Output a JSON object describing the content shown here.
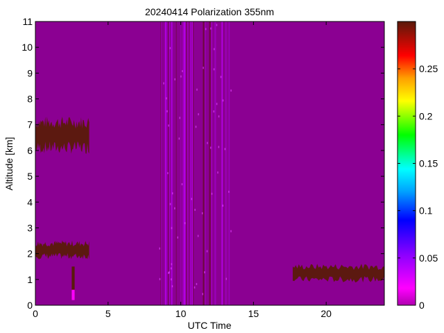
{
  "chart_data": {
    "type": "heatmap",
    "title": "20240414 Polarization 355nm",
    "xlabel": "UTC Time",
    "ylabel": "Altitude [km]",
    "xlim": [
      0,
      24
    ],
    "ylim": [
      0,
      11
    ],
    "x_ticks": [
      "0",
      "5",
      "10",
      "15",
      "20"
    ],
    "y_ticks": [
      "0",
      "1",
      "2",
      "3",
      "4",
      "5",
      "6",
      "7",
      "8",
      "9",
      "10",
      "11"
    ],
    "colorbar": {
      "range": [
        0,
        0.3
      ],
      "ticks": [
        "0",
        "0.05",
        "0.1",
        "0.15",
        "0.2",
        "0.25"
      ],
      "colormap": "purple-magenta-blue-cyan-green-yellow-orange-red-brown"
    },
    "background_value": 0.005,
    "background_color": "#8B0092",
    "features": [
      {
        "name": "mid-level layer",
        "x": [
          0,
          3.7
        ],
        "altitude": [
          5.9,
          7.3
        ],
        "value": 0.3
      },
      {
        "name": "low layer",
        "x": [
          0,
          3.7
        ],
        "altitude": [
          1.8,
          2.5
        ],
        "value": 0.3
      },
      {
        "name": "low-level dust layer",
        "x": [
          17.7,
          24
        ],
        "altitude": [
          0.9,
          1.6
        ],
        "value": 0.3
      },
      {
        "name": "surface return",
        "x": [
          2.5,
          2.7
        ],
        "altitude": [
          0.2,
          1.5
        ],
        "value": 0.3
      },
      {
        "name": "stripe band",
        "x": [
          8.5,
          13.5
        ],
        "altitude": [
          0,
          11
        ],
        "value": 0.03
      }
    ]
  }
}
